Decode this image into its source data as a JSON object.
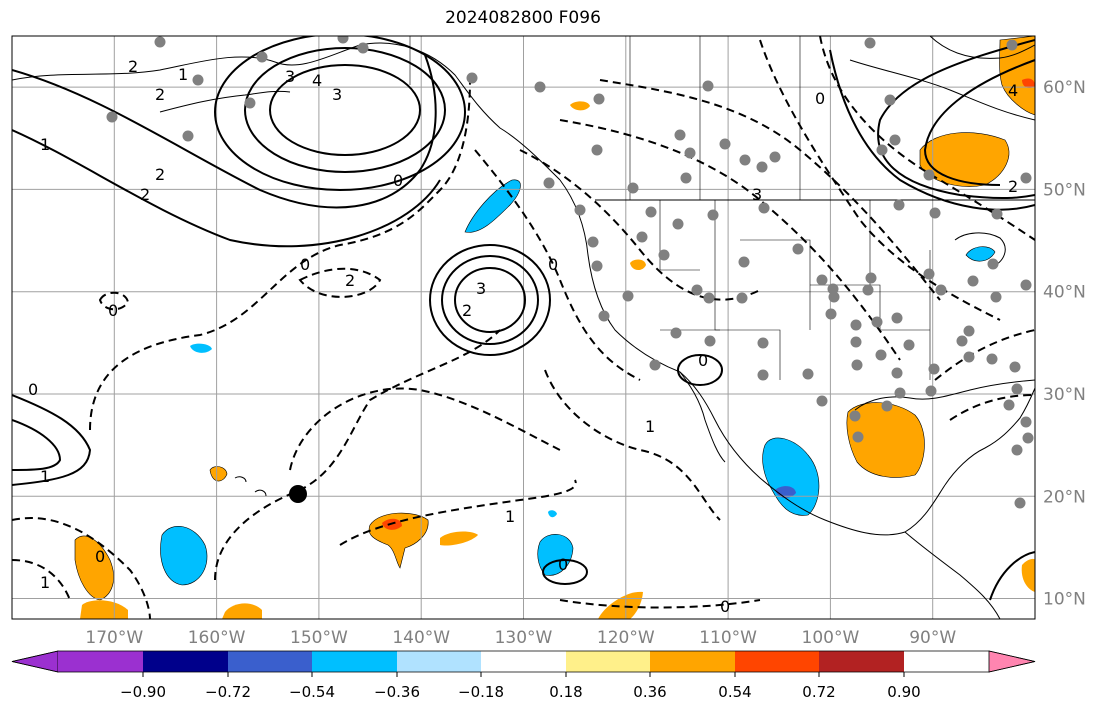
{
  "title": "2024082800 F096",
  "lon_axis": {
    "ticks": [
      {
        "label": "170°W",
        "lon": -170
      },
      {
        "label": "160°W",
        "lon": -160
      },
      {
        "label": "150°W",
        "lon": -150
      },
      {
        "label": "140°W",
        "lon": -140
      },
      {
        "label": "130°W",
        "lon": -130
      },
      {
        "label": "120°W",
        "lon": -120
      },
      {
        "label": "110°W",
        "lon": -110
      },
      {
        "label": "100°W",
        "lon": -100
      },
      {
        "label": "90°W",
        "lon": -90
      }
    ],
    "range": [
      -180,
      -80
    ]
  },
  "lat_axis": {
    "ticks": [
      {
        "label": "60°N",
        "lat": 60
      },
      {
        "label": "50°N",
        "lat": 50
      },
      {
        "label": "40°N",
        "lat": 40
      },
      {
        "label": "30°N",
        "lat": 30
      },
      {
        "label": "20°N",
        "lat": 20
      },
      {
        "label": "10°N",
        "lat": 10
      }
    ],
    "range": [
      8,
      65
    ]
  },
  "colorbar": {
    "tick_labels": [
      "−0.90",
      "−0.72",
      "−0.54",
      "−0.36",
      "−0.18",
      "0.18",
      "0.36",
      "0.54",
      "0.72",
      "0.90"
    ],
    "colors": [
      "#9b30d0",
      "#00008b",
      "#3a5fcd",
      "#00bfff",
      "#b0e2ff",
      "#ffffff",
      "#fff08a",
      "#ffa500",
      "#ff4500",
      "#b22222",
      "#ff85b0"
    ],
    "extend": "both"
  },
  "contour_labels": [
    "2",
    "1",
    "2",
    "3",
    "4",
    "3",
    "2",
    "1",
    "2",
    "0",
    "0",
    "2",
    "3",
    "2",
    "0",
    "1",
    "1",
    "1",
    "0",
    "0",
    "1",
    "0",
    "0",
    "3",
    "4",
    "2",
    "0",
    "0",
    "0"
  ],
  "colors": {
    "land_outline": "#000000",
    "grid": "#a0a0a0",
    "station_dot": "#808080",
    "marker": "#000000"
  }
}
